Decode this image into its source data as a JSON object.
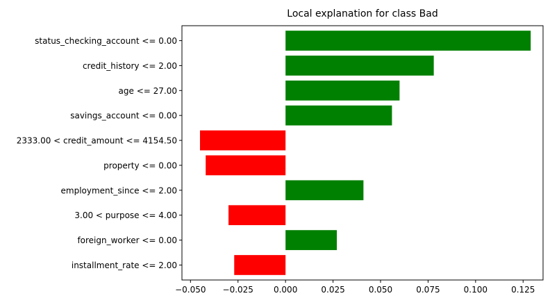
{
  "chart_data": {
    "type": "bar",
    "orientation": "horizontal",
    "title": "Local explanation for class Bad",
    "xlabel": "",
    "ylabel": "",
    "categories": [
      "status_checking_account <= 0.00",
      "credit_history <= 2.00",
      "age <= 27.00",
      "savings_account <= 0.00",
      "2333.00 < credit_amount <= 4154.50",
      "property <= 0.00",
      "employment_since <= 2.00",
      "3.00 < purpose <= 4.00",
      "foreign_worker <= 0.00",
      "installment_rate <= 2.00"
    ],
    "values": [
      0.129,
      0.078,
      0.06,
      0.056,
      -0.045,
      -0.042,
      0.041,
      -0.03,
      0.027,
      -0.027
    ],
    "xlim": [
      -0.0545,
      0.1355
    ],
    "xticks": [
      -0.05,
      -0.025,
      0.0,
      0.025,
      0.05,
      0.075,
      0.1,
      0.125
    ],
    "xtick_labels": [
      "−0.050",
      "−0.025",
      "0.000",
      "0.025",
      "0.050",
      "0.075",
      "0.100",
      "0.125"
    ],
    "grid": false,
    "colors": {
      "positive": "#008000",
      "negative": "#ff0000",
      "axes": "#000000"
    }
  }
}
